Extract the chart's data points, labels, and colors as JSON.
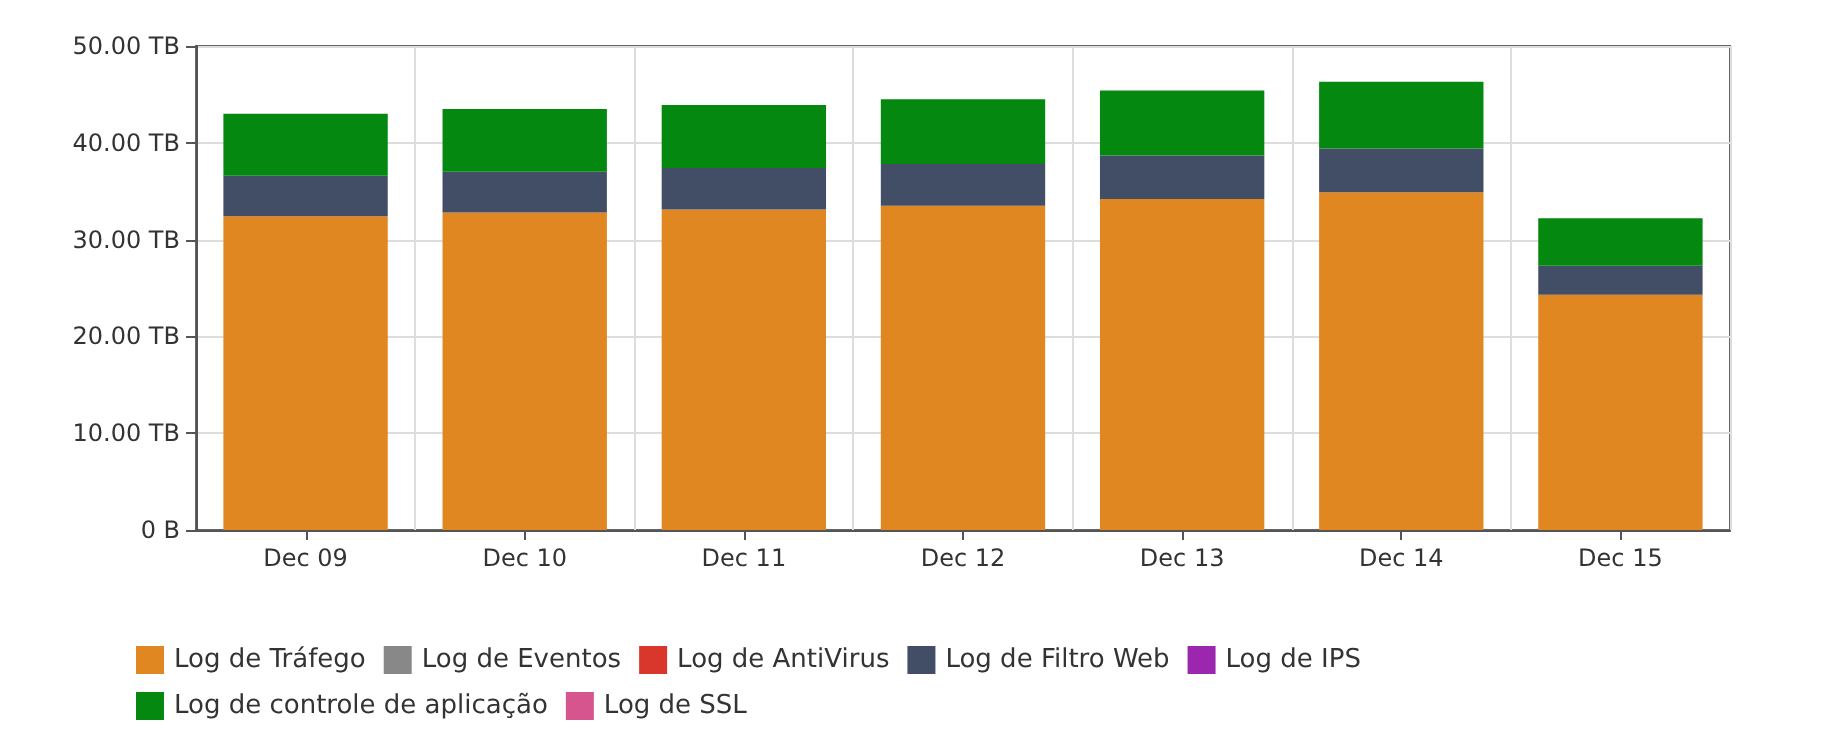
{
  "chart_data": {
    "type": "bar",
    "stacked": true,
    "categories": [
      "Dec 09",
      "Dec 10",
      "Dec 11",
      "Dec 12",
      "Dec 13",
      "Dec 14",
      "Dec 15"
    ],
    "series": [
      {
        "name": "Log de Tráfego",
        "color": "#e08722",
        "values": [
          32.4,
          32.8,
          33.1,
          33.5,
          34.2,
          34.9,
          24.3
        ]
      },
      {
        "name": "Log de Eventos",
        "color": "#888888",
        "values": [
          0,
          0,
          0,
          0,
          0,
          0,
          0
        ]
      },
      {
        "name": "Log de AntiVirus",
        "color": "#d9372b",
        "values": [
          0,
          0,
          0,
          0,
          0,
          0,
          0
        ]
      },
      {
        "name": "Log de Filtro Web",
        "color": "#414e66",
        "values": [
          4.2,
          4.2,
          4.3,
          4.3,
          4.5,
          4.5,
          3.0
        ]
      },
      {
        "name": "Log de IPS",
        "color": "#9b27af",
        "values": [
          0,
          0,
          0,
          0,
          0,
          0,
          0
        ]
      },
      {
        "name": "Log de controle de aplicação",
        "color": "#05880f",
        "values": [
          6.4,
          6.5,
          6.5,
          6.7,
          6.7,
          6.9,
          4.9
        ]
      },
      {
        "name": "Log de SSL",
        "color": "#d6558e",
        "values": [
          0,
          0,
          0,
          0,
          0,
          0,
          0
        ]
      }
    ],
    "ylim": [
      0,
      50
    ],
    "yticks": [
      {
        "value": 0,
        "label": "0 B"
      },
      {
        "value": 10,
        "label": "10.00 TB"
      },
      {
        "value": 20,
        "label": "20.00 TB"
      },
      {
        "value": 30,
        "label": "30.00 TB"
      },
      {
        "value": 40,
        "label": "40.00 TB"
      },
      {
        "value": 50,
        "label": "50.00 TB"
      }
    ],
    "grid": true,
    "legend": "bottom"
  }
}
